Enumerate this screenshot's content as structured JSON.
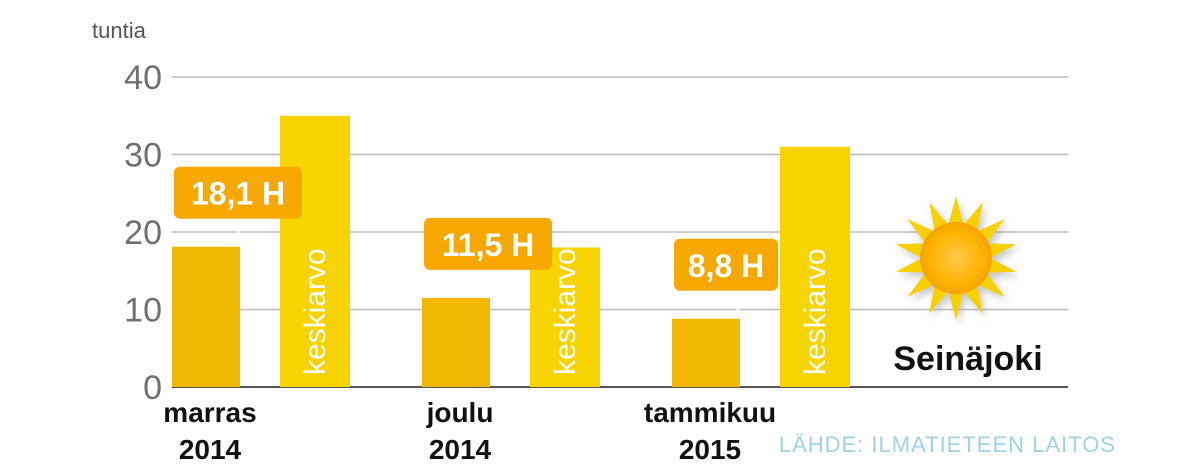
{
  "colors": {
    "measured": "#f0b800",
    "average": "#f7d400",
    "callout": "#f7a800",
    "grid": "#bdbdbd",
    "axis": "#555555",
    "source": "#9fd3e3"
  },
  "chart_data": {
    "type": "bar",
    "unit_label": "tuntia",
    "ylim": [
      0,
      40
    ],
    "yticks": [
      "0",
      "10",
      "20",
      "30",
      "40"
    ],
    "categories": [
      {
        "line1": "marras",
        "line2": "2014"
      },
      {
        "line1": "joulu",
        "line2": "2014"
      },
      {
        "line1": "tammikuu",
        "line2": "2015"
      }
    ],
    "series": [
      {
        "values": [
          18.1,
          11.5,
          8.8
        ],
        "labels": [
          "18,1 H",
          "11,5 H",
          "8,8 H"
        ]
      },
      {
        "values": [
          35,
          18,
          31
        ],
        "bar_text": "keskiarvo"
      }
    ],
    "grid": true,
    "city": "Seinäjoki",
    "source": "LÄHDE: ILMATIETEEN LAITOS",
    "icon": "sun-icon"
  }
}
